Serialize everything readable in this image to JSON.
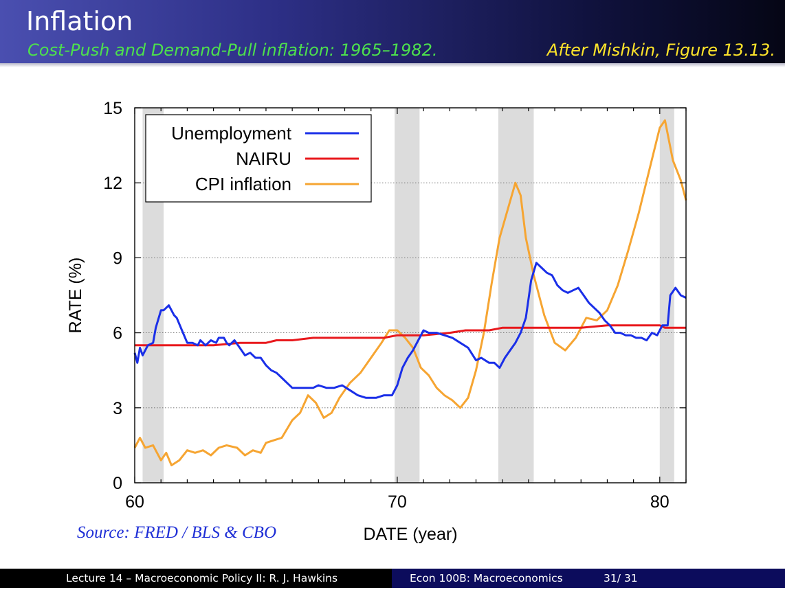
{
  "slide": {
    "title": "Inflation",
    "subtitle": "Cost-Push and Demand-Pull inflation: 1965–1982.",
    "credit": "After Mishkin, Figure 13.13."
  },
  "source_note": "Source: FRED / BLS & CBO",
  "footer": {
    "left": "Lecture 14 – Macroeconomic Policy II: R. J. Hawkins",
    "course": "Econ 100B: Macroeconomics",
    "page": "31/ 31"
  },
  "colors": {
    "unemployment": "#1a2fe8",
    "nairu": "#e8181c",
    "cpi": "#f6a532",
    "recession": "#dcdcdc",
    "header_accent": "#4de04d",
    "header_credit": "#ffe52a",
    "source": "#1f2fd6"
  },
  "chart_data": {
    "type": "line",
    "xlabel": "DATE (year)",
    "ylabel": "RATE (%)",
    "xlim": [
      60,
      81
    ],
    "ylim": [
      0,
      15
    ],
    "xticks": [
      60,
      70,
      80
    ],
    "yticks": [
      0,
      3,
      6,
      9,
      12,
      15
    ],
    "grid": "dotted horizontal",
    "legend_position": "top-left",
    "recession_bands": [
      [
        60.3,
        61.1
      ],
      [
        69.9,
        70.85
      ],
      [
        73.85,
        75.2
      ],
      [
        80.0,
        80.55
      ]
    ],
    "series": [
      {
        "name": "Unemployment",
        "x": [
          60.0,
          60.1,
          60.2,
          60.3,
          60.5,
          60.7,
          60.8,
          61.0,
          61.1,
          61.3,
          61.5,
          61.6,
          61.8,
          62.0,
          62.2,
          62.4,
          62.5,
          62.7,
          62.9,
          63.1,
          63.2,
          63.4,
          63.5,
          63.6,
          63.8,
          64.0,
          64.2,
          64.4,
          64.6,
          64.8,
          65.0,
          65.2,
          65.4,
          65.6,
          65.8,
          66.0,
          66.2,
          66.5,
          66.8,
          67.0,
          67.3,
          67.6,
          67.9,
          68.2,
          68.5,
          68.8,
          69.2,
          69.5,
          69.8,
          70.0,
          70.2,
          70.4,
          70.6,
          70.8,
          71.0,
          71.2,
          71.5,
          71.8,
          72.1,
          72.4,
          72.7,
          73.0,
          73.2,
          73.5,
          73.7,
          73.9,
          74.1,
          74.3,
          74.5,
          74.7,
          74.9,
          75.1,
          75.3,
          75.5,
          75.7,
          75.9,
          76.1,
          76.3,
          76.5,
          76.7,
          76.9,
          77.1,
          77.3,
          77.5,
          77.7,
          77.9,
          78.1,
          78.3,
          78.5,
          78.7,
          78.9,
          79.1,
          79.3,
          79.5,
          79.7,
          79.9,
          80.1,
          80.3,
          80.4,
          80.6,
          80.8,
          81.0
        ],
        "values": [
          5.2,
          4.8,
          5.4,
          5.1,
          5.5,
          5.6,
          6.2,
          6.9,
          6.9,
          7.1,
          6.7,
          6.6,
          6.1,
          5.6,
          5.6,
          5.5,
          5.7,
          5.5,
          5.7,
          5.6,
          5.8,
          5.8,
          5.6,
          5.5,
          5.7,
          5.4,
          5.1,
          5.2,
          5.0,
          5.0,
          4.7,
          4.5,
          4.4,
          4.2,
          4.0,
          3.8,
          3.8,
          3.8,
          3.8,
          3.9,
          3.8,
          3.8,
          3.9,
          3.7,
          3.5,
          3.4,
          3.4,
          3.5,
          3.5,
          3.9,
          4.6,
          5.0,
          5.3,
          5.7,
          6.1,
          6.0,
          6.0,
          5.9,
          5.8,
          5.6,
          5.4,
          4.9,
          5.0,
          4.8,
          4.8,
          4.6,
          5.0,
          5.3,
          5.6,
          6.0,
          6.6,
          8.1,
          8.8,
          8.6,
          8.4,
          8.3,
          7.9,
          7.7,
          7.6,
          7.7,
          7.8,
          7.5,
          7.2,
          7.0,
          6.8,
          6.5,
          6.3,
          6.0,
          6.0,
          5.9,
          5.9,
          5.8,
          5.8,
          5.7,
          6.0,
          5.9,
          6.3,
          6.3,
          7.5,
          7.8,
          7.5,
          7.4
        ]
      },
      {
        "name": "NAIRU",
        "x": [
          60,
          62,
          63,
          64,
          65,
          65.4,
          66,
          66.8,
          68,
          69.5,
          70,
          71,
          72,
          72.6,
          73.5,
          74,
          75,
          77,
          78,
          79,
          80,
          80.2,
          81
        ],
        "values": [
          5.5,
          5.5,
          5.5,
          5.6,
          5.6,
          5.7,
          5.7,
          5.8,
          5.8,
          5.8,
          5.9,
          5.9,
          6.0,
          6.1,
          6.1,
          6.2,
          6.2,
          6.2,
          6.3,
          6.3,
          6.3,
          6.2,
          6.2
        ]
      },
      {
        "name": "CPI inflation",
        "x": [
          60.0,
          60.2,
          60.4,
          60.7,
          61.0,
          61.2,
          61.4,
          61.7,
          62.0,
          62.3,
          62.6,
          62.9,
          63.2,
          63.5,
          63.9,
          64.2,
          64.5,
          64.8,
          65.0,
          65.3,
          65.6,
          66.0,
          66.3,
          66.6,
          66.9,
          67.2,
          67.5,
          67.8,
          68.2,
          68.6,
          69.0,
          69.4,
          69.7,
          70.0,
          70.3,
          70.6,
          70.9,
          71.2,
          71.5,
          71.8,
          72.1,
          72.4,
          72.7,
          73.0,
          73.3,
          73.6,
          73.9,
          74.2,
          74.5,
          74.7,
          74.9,
          75.2,
          75.6,
          76.0,
          76.4,
          76.8,
          77.2,
          77.6,
          78.0,
          78.4,
          78.8,
          79.2,
          79.6,
          80.0,
          80.2,
          80.5,
          80.8,
          81.0
        ],
        "values": [
          1.4,
          1.8,
          1.4,
          1.5,
          0.9,
          1.2,
          0.7,
          0.9,
          1.3,
          1.2,
          1.3,
          1.1,
          1.4,
          1.5,
          1.4,
          1.1,
          1.3,
          1.2,
          1.6,
          1.7,
          1.8,
          2.5,
          2.8,
          3.5,
          3.2,
          2.6,
          2.8,
          3.4,
          4.0,
          4.4,
          5.0,
          5.6,
          6.1,
          6.1,
          5.8,
          5.4,
          4.6,
          4.3,
          3.8,
          3.5,
          3.3,
          3.0,
          3.4,
          4.5,
          6.0,
          8.0,
          9.8,
          10.9,
          12.0,
          11.5,
          9.8,
          8.3,
          6.7,
          5.6,
          5.3,
          5.8,
          6.6,
          6.5,
          6.9,
          7.9,
          9.3,
          10.8,
          12.5,
          14.2,
          14.5,
          12.9,
          12.1,
          11.3
        ]
      }
    ]
  }
}
